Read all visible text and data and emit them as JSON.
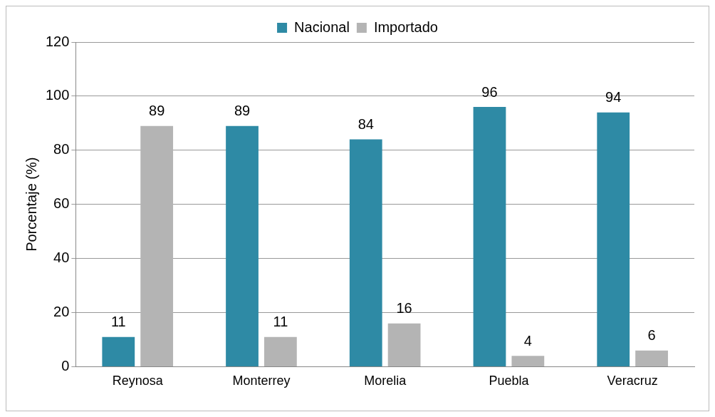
{
  "chart_data": {
    "type": "bar",
    "ylabel": "Porcentaje (%)",
    "categories": [
      "Reynosa",
      "Monterrey",
      "Morelia",
      "Puebla",
      "Veracruz"
    ],
    "series": [
      {
        "name": "Nacional",
        "color": "#2e8aa5",
        "values": [
          11,
          89,
          84,
          96,
          94
        ]
      },
      {
        "name": "Importado",
        "color": "#b4b4b4",
        "values": [
          89,
          11,
          16,
          4,
          6
        ]
      }
    ],
    "ylim": [
      0,
      120
    ],
    "yticks": [
      0,
      20,
      40,
      60,
      80,
      100,
      120
    ],
    "grid": "y",
    "legend": "top",
    "data_labels": true
  }
}
